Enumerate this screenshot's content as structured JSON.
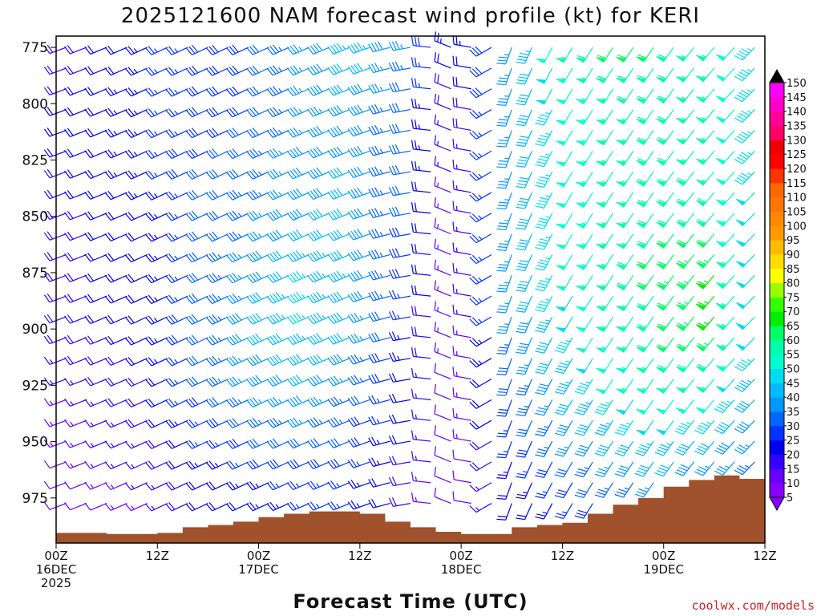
{
  "chart_data": {
    "type": "wind-barb time-height profile",
    "title": "2025121600 NAM forecast wind profile (kt) for KERI",
    "xlabel": "Forecast Time (UTC)",
    "ylabel_units": "hPa",
    "credit": "coolwx.com/models",
    "x_hours_range": [
      0,
      84
    ],
    "ylim_hpa": [
      770,
      995
    ],
    "y_ticks": [
      "775",
      "800",
      "825",
      "850",
      "875",
      "900",
      "925",
      "950",
      "975"
    ],
    "x_ticks": [
      {
        "hour": 0,
        "lines": [
          "00Z",
          "16DEC",
          "2025"
        ]
      },
      {
        "hour": 12,
        "lines": [
          "12Z"
        ]
      },
      {
        "hour": 24,
        "lines": [
          "00Z",
          "17DEC"
        ]
      },
      {
        "hour": 36,
        "lines": [
          "12Z"
        ]
      },
      {
        "hour": 48,
        "lines": [
          "00Z",
          "18DEC"
        ]
      },
      {
        "hour": 60,
        "lines": [
          "12Z"
        ]
      },
      {
        "hour": 72,
        "lines": [
          "00Z",
          "19DEC"
        ]
      },
      {
        "hour": 84,
        "lines": [
          "12Z"
        ]
      }
    ],
    "colorbar": {
      "units": "kt",
      "levels": [
        5,
        10,
        15,
        20,
        25,
        30,
        35,
        40,
        45,
        50,
        55,
        60,
        65,
        70,
        75,
        80,
        85,
        90,
        95,
        100,
        105,
        110,
        115,
        120,
        125,
        130,
        135,
        140,
        145,
        150
      ],
      "colors": [
        "#8800ff",
        "#6600ff",
        "#3300ff",
        "#0000ee",
        "#0033ff",
        "#0066ff",
        "#0099ff",
        "#00bbff",
        "#00ddee",
        "#00ffcc",
        "#00ffaa",
        "#00ff66",
        "#00ee00",
        "#33ff00",
        "#99ff00",
        "#ffff00",
        "#ffdd00",
        "#ffbb00",
        "#ff9900",
        "#ff8800",
        "#ff7700",
        "#ff6600",
        "#ff3300",
        "#ff0000",
        "#ee0000",
        "#ff0066",
        "#ff0099",
        "#ff00cc",
        "#ff00ff"
      ]
    },
    "surface_pressure_hpa": {
      "hours": [
        0,
        3,
        6,
        9,
        12,
        15,
        18,
        21,
        24,
        27,
        30,
        33,
        36,
        39,
        42,
        45,
        48,
        51,
        54,
        57,
        60,
        63,
        66,
        69,
        72,
        75,
        78,
        81,
        84
      ],
      "values": [
        990.5,
        990.5,
        991,
        991,
        990.5,
        988,
        987,
        985.5,
        983.5,
        982,
        981,
        981,
        982,
        985.5,
        988,
        990,
        991,
        991,
        988,
        987,
        986,
        982,
        978,
        975,
        970,
        967,
        965,
        966.5,
        966
      ]
    },
    "wind_speed_kt": {
      "hours": [
        0,
        6,
        12,
        18,
        24,
        30,
        36,
        42,
        48,
        54,
        60,
        66,
        72,
        78,
        84
      ],
      "levels_hpa": [
        775,
        800,
        825,
        850,
        875,
        900,
        925,
        950,
        975
      ],
      "values": [
        [
          18,
          20,
          25,
          28,
          30,
          35,
          45,
          35,
          20,
          35,
          55,
          60,
          60,
          55,
          45
        ],
        [
          20,
          22,
          25,
          28,
          30,
          35,
          40,
          30,
          15,
          35,
          50,
          55,
          60,
          55,
          45
        ],
        [
          20,
          22,
          25,
          30,
          32,
          38,
          40,
          30,
          12,
          35,
          50,
          55,
          60,
          55,
          45
        ],
        [
          18,
          20,
          22,
          30,
          35,
          40,
          42,
          30,
          10,
          35,
          50,
          55,
          60,
          60,
          45
        ],
        [
          18,
          20,
          22,
          30,
          38,
          45,
          42,
          28,
          10,
          35,
          50,
          55,
          62,
          65,
          45
        ],
        [
          18,
          20,
          22,
          32,
          40,
          45,
          40,
          25,
          10,
          35,
          45,
          55,
          60,
          65,
          45
        ],
        [
          15,
          18,
          20,
          30,
          38,
          40,
          35,
          22,
          10,
          30,
          40,
          50,
          55,
          55,
          40
        ],
        [
          12,
          15,
          18,
          25,
          30,
          32,
          30,
          20,
          10,
          25,
          35,
          40,
          45,
          40,
          35
        ],
        [
          10,
          12,
          15,
          20,
          22,
          25,
          25,
          18,
          8,
          20,
          25,
          30,
          35,
          30,
          30
        ]
      ]
    },
    "wind_dir_deg": {
      "hours": [
        0,
        12,
        24,
        36,
        42,
        48,
        54,
        60,
        72,
        84
      ],
      "values": [
        250,
        245,
        245,
        248,
        260,
        300,
        200,
        210,
        215,
        225
      ]
    }
  }
}
